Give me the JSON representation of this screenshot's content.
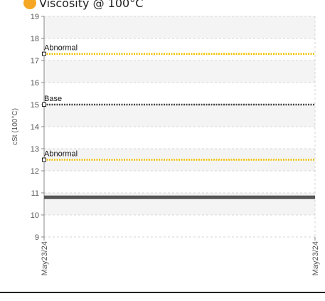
{
  "chart_data": {
    "type": "line",
    "title": "Viscosity @ 100°C",
    "title_dot_color": "#f5a623",
    "ylabel": "cSt (100°C)",
    "ylim": [
      9,
      19
    ],
    "yticks": [
      9,
      10,
      11,
      12,
      13,
      14,
      15,
      16,
      17,
      18,
      19
    ],
    "x": [
      "May23/24",
      "May23/24"
    ],
    "grid": true,
    "series": [
      {
        "name": "Abnormal",
        "values": [
          17.3,
          17.3
        ],
        "color": "#f2c200",
        "style": "dotted"
      },
      {
        "name": "Base",
        "values": [
          15.0,
          15.0
        ],
        "color": "#444444",
        "style": "dotted"
      },
      {
        "name": "Abnormal",
        "values": [
          12.5,
          12.5
        ],
        "color": "#f2c200",
        "style": "dotted"
      },
      {
        "name": "",
        "values": [
          10.8,
          10.8
        ],
        "color": "#555555",
        "style": "solid"
      }
    ]
  }
}
